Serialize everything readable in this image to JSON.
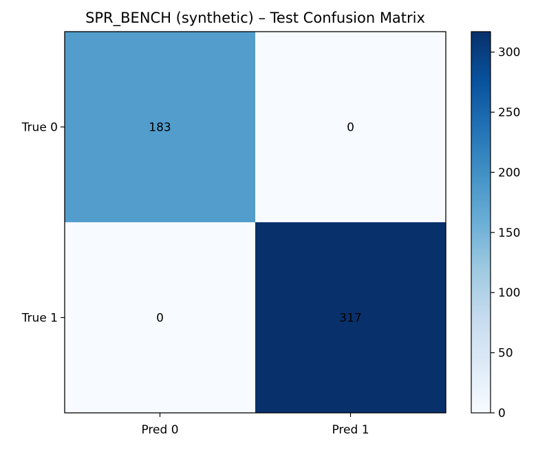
{
  "chart_data": {
    "type": "heatmap",
    "title": "SPR_BENCH (synthetic) – Test Confusion Matrix",
    "x_tick_labels": [
      "Pred 0",
      "Pred 1"
    ],
    "y_tick_labels": [
      "True 0",
      "True 1"
    ],
    "matrix": [
      [
        183,
        0
      ],
      [
        0,
        317
      ]
    ],
    "cell_labels": [
      [
        "183",
        "0"
      ],
      [
        "0",
        "317"
      ]
    ],
    "colormap": "Blues",
    "color_range": [
      0,
      317
    ],
    "colorbar": {
      "ticks": [
        0,
        50,
        100,
        150,
        200,
        250,
        300
      ],
      "tick_labels": [
        "0",
        "50",
        "100",
        "150",
        "200",
        "250",
        "300"
      ]
    },
    "colors": {
      "low": "#f7fbff",
      "high": "#08306b"
    }
  }
}
